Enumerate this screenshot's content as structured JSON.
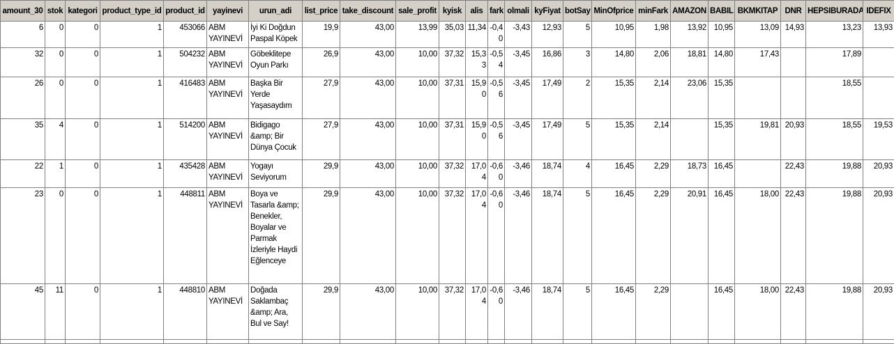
{
  "columns": [
    "amount_30",
    "stok",
    "kategori",
    "product_type_id",
    "product_id",
    "yayinevi",
    "urun_adi",
    "list_price",
    "take_discount",
    "sale_profit",
    "kyisk",
    "alis",
    "fark",
    "olmali",
    "kyFiyat",
    "botSay",
    "MinOfprice",
    "minFark",
    "AMAZON",
    "BABIL",
    "BKMKITAP",
    "DNR",
    "HEPSIBURADA",
    "IDEFIX"
  ],
  "rows": [
    [
      "6",
      "0",
      "0",
      "1",
      "453066",
      "ABM YAYINEVİ",
      "İyi Ki Doğdun Paspal Köpek",
      "19,9",
      "43,00",
      "13,99",
      "35,03",
      "11,34",
      "-0,40",
      "-3,43",
      "12,93",
      "5",
      "10,95",
      "1,98",
      "13,92",
      "10,95",
      "13,09",
      "14,93",
      "13,23",
      "13,93"
    ],
    [
      "32",
      "0",
      "0",
      "1",
      "504232",
      "ABM YAYINEVİ",
      "Göbeklitepe Oyun Parkı",
      "26,9",
      "43,00",
      "10,00",
      "37,32",
      "15,33",
      "-0,54",
      "-3,45",
      "16,86",
      "3",
      "14,80",
      "2,06",
      "18,81",
      "14,80",
      "17,43",
      null,
      "17,89",
      null
    ],
    [
      "26",
      "0",
      "0",
      "1",
      "416483",
      "ABM YAYINEVİ",
      "Başka Bir Yerde Yaşasaydım",
      "27,9",
      "43,00",
      "10,00",
      "37,31",
      "15,90",
      "-0,56",
      "-3,45",
      "17,49",
      "2",
      "15,35",
      "2,14",
      "23,06",
      "15,35",
      null,
      null,
      "18,55",
      null
    ],
    [
      "35",
      "4",
      "0",
      "1",
      "514200",
      "ABM YAYINEVİ",
      "Bidigago &amp; Bir Dünya Çocuk",
      "27,9",
      "43,00",
      "10,00",
      "37,31",
      "15,90",
      "-0,56",
      "-3,45",
      "17,49",
      "5",
      "15,35",
      "2,14",
      null,
      "15,35",
      "19,81",
      "20,93",
      "18,55",
      "19,53"
    ],
    [
      "22",
      "1",
      "0",
      "1",
      "435428",
      "ABM YAYINEVİ",
      "Yogayı Seviyorum",
      "29,9",
      "43,00",
      "10,00",
      "37,32",
      "17,04",
      "-0,60",
      "-3,46",
      "18,74",
      "4",
      "16,45",
      "2,29",
      "18,73",
      "16,45",
      null,
      "22,43",
      "19,88",
      "20,93"
    ],
    [
      "23",
      "0",
      "0",
      "1",
      "448811",
      "ABM YAYINEVİ",
      "Boya ve Tasarla &amp; Benekler, Boyalar ve Parmak İzleriyle Haydi Eğlenceye",
      "29,9",
      "43,00",
      "10,00",
      "37,32",
      "17,04",
      "-0,60",
      "-3,46",
      "18,74",
      "5",
      "16,45",
      "2,29",
      "20,91",
      "16,45",
      "18,00",
      "22,43",
      "19,88",
      "20,93"
    ],
    [
      "45",
      "11",
      "0",
      "1",
      "448810",
      "ABM YAYINEVİ",
      "Doğada Saklambaç &amp; Ara, Bul ve Say!",
      "29,9",
      "43,00",
      "10,00",
      "37,32",
      "17,04",
      "-0,60",
      "-3,46",
      "18,74",
      "5",
      "16,45",
      "2,29",
      null,
      "16,45",
      "18,00",
      "22,43",
      "19,88",
      "20,93"
    ]
  ]
}
